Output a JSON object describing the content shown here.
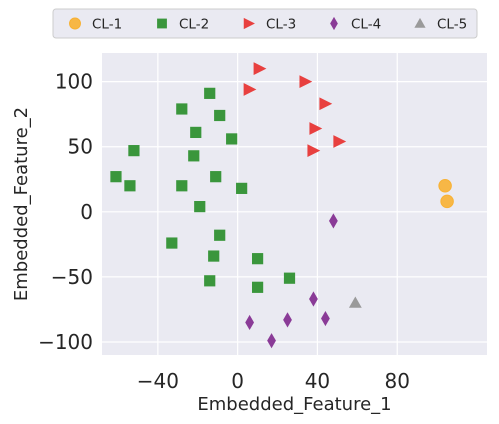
{
  "chart_data": {
    "type": "scatter",
    "title": "",
    "xlabel": "Embedded_Feature_1",
    "ylabel": "Embedded_Feature_2",
    "xlim": [
      -68,
      125
    ],
    "ylim": [
      -110,
      122
    ],
    "xticks": [
      -40,
      0,
      40,
      80
    ],
    "yticks": [
      100,
      50,
      0,
      -50,
      -100
    ],
    "xtick_labels": [
      "−40",
      "0",
      "40",
      "80"
    ],
    "ytick_labels": [
      "100",
      "50",
      "0",
      "−50",
      "−100"
    ],
    "grid": true,
    "background": "#eaeaf2",
    "legend_position": "top-center",
    "series": [
      {
        "name": "CL-1",
        "marker": "circle",
        "color": "#f8b133",
        "points": [
          [
            104,
            20
          ],
          [
            105,
            8
          ]
        ]
      },
      {
        "name": "CL-2",
        "marker": "square",
        "color": "#3a963c",
        "points": [
          [
            -14,
            91
          ],
          [
            -28,
            79
          ],
          [
            -9,
            74
          ],
          [
            -21,
            61
          ],
          [
            -3,
            56
          ],
          [
            -52,
            47
          ],
          [
            -22,
            43
          ],
          [
            -61,
            27
          ],
          [
            -11,
            27
          ],
          [
            -54,
            20
          ],
          [
            -28,
            20
          ],
          [
            2,
            18
          ],
          [
            -19,
            4
          ],
          [
            -9,
            -18
          ],
          [
            -33,
            -24
          ],
          [
            -12,
            -34
          ],
          [
            10,
            -36
          ],
          [
            -14,
            -53
          ],
          [
            26,
            -51
          ],
          [
            10,
            -58
          ]
        ]
      },
      {
        "name": "CL-3",
        "marker": "triangle-right",
        "color": "#e8403f",
        "points": [
          [
            11,
            110
          ],
          [
            34,
            100
          ],
          [
            6,
            94
          ],
          [
            44,
            83
          ],
          [
            39,
            64
          ],
          [
            51,
            54
          ],
          [
            38,
            47
          ]
        ]
      },
      {
        "name": "CL-4",
        "marker": "diamond",
        "color": "#8a3b97",
        "points": [
          [
            48,
            -7
          ],
          [
            38,
            -67
          ],
          [
            44,
            -82
          ],
          [
            6,
            -85
          ],
          [
            25,
            -83
          ],
          [
            17,
            -99
          ]
        ]
      },
      {
        "name": "CL-5",
        "marker": "triangle-up",
        "color": "#9a9a9a",
        "points": [
          [
            59,
            -70
          ]
        ]
      }
    ]
  }
}
